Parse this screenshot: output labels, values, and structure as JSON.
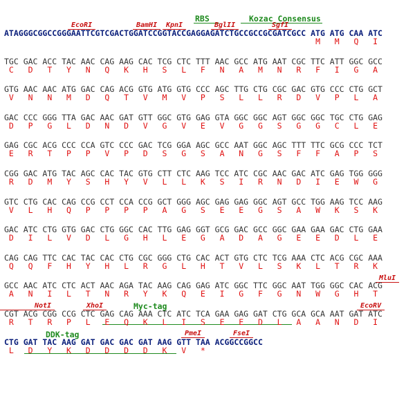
{
  "features": [
    {
      "label": "RBS"
    },
    {
      "label": "Kozac Consensus"
    },
    {
      "label": "EcoRI"
    },
    {
      "label": "BamHI"
    },
    {
      "label": "KpnI"
    },
    {
      "label": "BglII"
    },
    {
      "label": "SgfI"
    },
    {
      "label": "MluI"
    },
    {
      "label": "NotI"
    },
    {
      "label": "XhoI"
    },
    {
      "label": "Myc-tag"
    },
    {
      "label": "EcoRV"
    },
    {
      "label": "DDK-tag"
    },
    {
      "label": "PmeI"
    },
    {
      "label": "FseI"
    }
  ],
  "rows": [
    {
      "dna": "ATAGGGCGGCCGGGAATTCGTCGACTGGATCCGGTACCGAGGAGATCTGCCGCCGCGATCGCC ATG ATG CAA ATC",
      "aa": [
        "M",
        "M",
        "Q",
        "I"
      ]
    },
    {
      "dna": "TGC GAC ACC TAC AAC CAG AAG CAC TCG CTC TTT AAC GCC ATG AAT CGC TTC ATT GGC GCC",
      "aa": [
        "C",
        "D",
        "T",
        "Y",
        "N",
        "Q",
        "K",
        "H",
        "S",
        "L",
        "F",
        "N",
        "A",
        "M",
        "N",
        "R",
        "F",
        "I",
        "G",
        "A"
      ]
    },
    {
      "dna": "GTG AAC AAC ATG GAC CAG ACG GTG ATG GTG CCC AGC TTG CTG CGC GAC GTG CCC CTG GCT",
      "aa": [
        "V",
        "N",
        "N",
        "M",
        "D",
        "Q",
        "T",
        "V",
        "M",
        "V",
        "P",
        "S",
        "L",
        "L",
        "R",
        "D",
        "V",
        "P",
        "L",
        "A"
      ]
    },
    {
      "dna": "GAC CCC GGG TTA GAC AAC GAT GTT GGC GTG GAG GTA GGC GGC AGT GGC GGC TGC CTG GAG",
      "aa": [
        "D",
        "P",
        "G",
        "L",
        "D",
        "N",
        "D",
        "V",
        "G",
        "V",
        "E",
        "V",
        "G",
        "G",
        "S",
        "G",
        "G",
        "C",
        "L",
        "E"
      ]
    },
    {
      "dna": "GAG CGC ACG CCC CCA GTC CCC GAC TCG GGA AGC GCC AAT GGC AGC TTT TTC GCG CCC TCT",
      "aa": [
        "E",
        "R",
        "T",
        "P",
        "P",
        "V",
        "P",
        "D",
        "S",
        "G",
        "S",
        "A",
        "N",
        "G",
        "S",
        "F",
        "F",
        "A",
        "P",
        "S"
      ]
    },
    {
      "dna": "CGG GAC ATG TAC AGC CAC TAC GTG CTT CTC AAG TCC ATC CGC AAC GAC ATC GAG TGG GGG",
      "aa": [
        "R",
        "D",
        "M",
        "Y",
        "S",
        "H",
        "Y",
        "V",
        "L",
        "L",
        "K",
        "S",
        "I",
        "R",
        "N",
        "D",
        "I",
        "E",
        "W",
        "G"
      ]
    },
    {
      "dna": "GTC CTG CAC CAG CCG CCT CCA CCG GCT GGG AGC GAG GAG GGC AGT GCC TGG AAG TCC AAG",
      "aa": [
        "V",
        "L",
        "H",
        "Q",
        "P",
        "P",
        "P",
        "P",
        "A",
        "G",
        "S",
        "E",
        "E",
        "G",
        "S",
        "A",
        "W",
        "K",
        "S",
        "K"
      ]
    },
    {
      "dna": "GAC ATC CTG GTG GAC CTG GGC CAC TTG GAG GGT GCG GAC GCC GGC GAA GAA GAC CTG GAA",
      "aa": [
        "D",
        "I",
        "L",
        "V",
        "D",
        "L",
        "G",
        "H",
        "L",
        "E",
        "G",
        "A",
        "D",
        "A",
        "G",
        "E",
        "E",
        "D",
        "L",
        "E"
      ]
    },
    {
      "dna": "CAG CAG TTC CAC TAC CAC CTG CGC GGG CTG CAC ACT GTG CTC TCG AAA CTC ACG CGC AAA",
      "aa": [
        "Q",
        "Q",
        "F",
        "H",
        "Y",
        "H",
        "L",
        "R",
        "G",
        "L",
        "H",
        "T",
        "V",
        "L",
        "S",
        "K",
        "L",
        "T",
        "R",
        "K"
      ]
    },
    {
      "dna": "GCC AAC ATC CTC ACT AAC AGA TAC AAG CAG GAG ATC GGC TTC GGC AAT TGG GGC CAC ACG",
      "aa": [
        "A",
        "N",
        "I",
        "L",
        "T",
        "N",
        "R",
        "Y",
        "K",
        "Q",
        "E",
        "I",
        "G",
        "F",
        "G",
        "N",
        "W",
        "G",
        "H",
        "T"
      ]
    },
    {
      "dna": "CGT ACG CGG CCG CTC GAG CAG AAA CTC ATC TCA GAA GAG GAT CTG GCA GCA AAT GAT ATC",
      "aa": [
        "R",
        "T",
        "R",
        "P",
        "L",
        "E",
        "Q",
        "K",
        "L",
        "I",
        "S",
        "E",
        "E",
        "D",
        "L",
        "A",
        "A",
        "N",
        "D",
        "I"
      ]
    },
    {
      "dna": "CTG GAT TAC AAG GAT GAC GAC GAT AAG GTT TAA ACGGCCGGCC",
      "aa": [
        "L",
        "D",
        "Y",
        "K",
        "D",
        "D",
        "D",
        "D",
        "K",
        "V",
        "*"
      ]
    }
  ]
}
